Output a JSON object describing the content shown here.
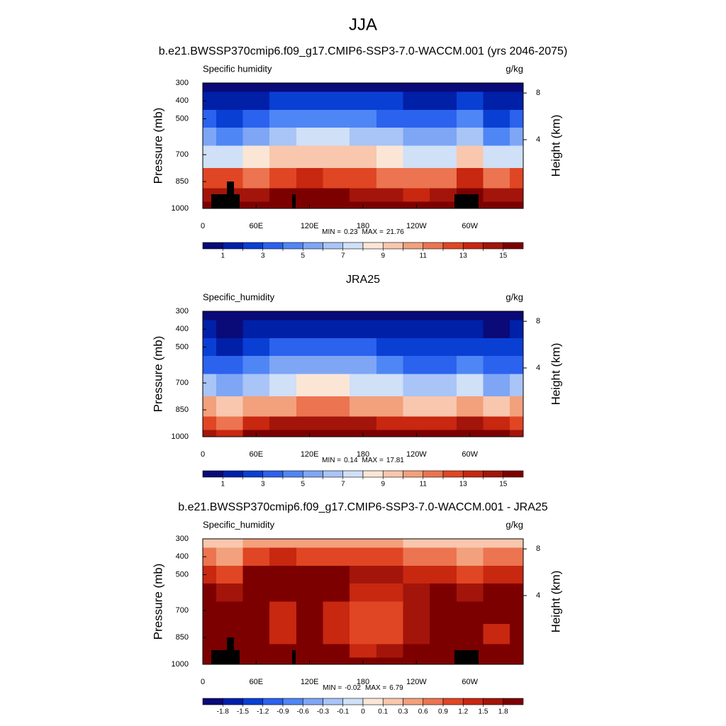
{
  "figure": {
    "title": "JJA"
  },
  "chart_data": [
    {
      "type": "contour",
      "title": "b.e21.BWSSP370cmip6.f09_g17.CMIP6-SSP3-7.0-WACCM.001 (yrs 2046-2075)",
      "left_label": "Specific humidity",
      "units_label": "g/kg",
      "ylabel": "Pressure (mb)",
      "y2label": "Height (km)",
      "x": [
        0,
        30,
        60,
        90,
        120,
        150,
        180,
        210,
        240,
        270,
        300,
        330,
        360
      ],
      "y": [
        300,
        400,
        500,
        600,
        700,
        850,
        925,
        1000
      ],
      "values": [
        [
          0.5,
          0.4,
          0.6,
          0.8,
          0.9,
          0.9,
          0.8,
          0.7,
          0.6,
          0.5,
          0.7,
          0.5,
          0.5
        ],
        [
          1.5,
          1.2,
          1.8,
          2.2,
          2.4,
          2.4,
          2.2,
          2,
          1.7,
          1.5,
          2,
          1.4,
          1.5
        ],
        [
          3,
          2.5,
          3.6,
          4.2,
          4.5,
          4.5,
          4.2,
          3.8,
          3.3,
          3,
          4,
          2.8,
          3
        ],
        [
          5,
          4,
          5.8,
          6.5,
          7,
          7,
          6.5,
          6,
          5.2,
          5,
          6.8,
          4.6,
          5
        ],
        [
          7.5,
          7,
          8,
          9,
          9.5,
          9.5,
          9,
          8.5,
          7.5,
          7.5,
          9.5,
          7,
          7.5
        ],
        [
          12,
          12,
          11,
          12,
          13,
          12.5,
          12,
          11.5,
          11,
          11.5,
          13,
          11.5,
          12
        ],
        [
          14,
          14,
          14.5,
          15,
          15.5,
          15,
          14.5,
          14,
          13.5,
          14,
          15,
          14,
          14
        ],
        [
          16,
          16,
          16.5,
          17,
          17.5,
          17,
          16.5,
          16,
          16,
          16.5,
          17,
          16.5,
          16
        ]
      ],
      "xlim": [
        0,
        360
      ],
      "xticks": [
        0,
        {
          "value": 60,
          "label": "60E"
        },
        {
          "value": 120,
          "label": "120E"
        },
        180,
        {
          "value": 240,
          "label": "120W"
        },
        {
          "value": 300,
          "label": "60W"
        }
      ],
      "ylim": [
        1000,
        300
      ],
      "yticks": [
        300,
        400,
        500,
        700,
        850,
        1000
      ],
      "y2ticks": [
        4,
        8
      ],
      "min_label": "MIN =",
      "min": 0.23,
      "max_label": "MAX =",
      "max": 21.76,
      "colorbar": {
        "levels": [
          1,
          2,
          3,
          4,
          5,
          6,
          7,
          8,
          9,
          10,
          11,
          12,
          13,
          14,
          15
        ],
        "label_stride": 2,
        "colors": [
          "#0a0a78",
          "#0020a8",
          "#0a3fd4",
          "#2b62ee",
          "#4f86f5",
          "#7ea6f5",
          "#a9c4f6",
          "#cfe0f7",
          "#fbe6d6",
          "#f8c7ad",
          "#f3a07c",
          "#ec7450",
          "#e04623",
          "#c82710",
          "#a3150a",
          "#7d0000"
        ]
      }
    },
    {
      "type": "contour",
      "title": "JRA25",
      "left_label": "Specific_humidity",
      "units_label": "g/kg",
      "ylabel": "Pressure (mb)",
      "y2label": "Height (km)",
      "x": [
        0,
        30,
        60,
        90,
        120,
        150,
        180,
        210,
        240,
        270,
        300,
        330,
        360
      ],
      "y": [
        300,
        400,
        500,
        600,
        700,
        850,
        925,
        1000
      ],
      "values": [
        [
          0.4,
          0.3,
          0.4,
          0.5,
          0.6,
          0.6,
          0.5,
          0.4,
          0.4,
          0.3,
          0.4,
          0.3,
          0.4
        ],
        [
          1,
          0.8,
          1.2,
          1.5,
          1.6,
          1.7,
          1.5,
          1.3,
          1.1,
          1,
          1.3,
          0.9,
          1
        ],
        [
          2.2,
          1.6,
          2.6,
          3,
          3.2,
          3.4,
          3,
          2.6,
          2.2,
          2,
          2.6,
          2,
          2.2
        ],
        [
          3.6,
          3,
          4.2,
          5,
          5.2,
          5.4,
          5,
          4.4,
          3.8,
          3.6,
          4.4,
          3.4,
          3.6
        ],
        [
          6,
          5,
          6.5,
          7.5,
          8,
          8,
          7.5,
          7,
          6.2,
          6,
          7,
          5.8,
          6
        ],
        [
          10,
          9,
          10,
          10.5,
          11,
          11,
          10.5,
          10,
          9.5,
          9.5,
          10.5,
          9.5,
          10
        ],
        [
          12.5,
          11,
          13.5,
          14,
          14.5,
          14.5,
          14,
          13.5,
          13,
          13,
          14,
          13,
          12.5
        ],
        [
          14,
          13,
          15.5,
          16,
          16.5,
          16.5,
          16,
          15.5,
          15,
          15,
          16,
          15,
          14
        ]
      ],
      "xlim": [
        0,
        360
      ],
      "xticks": [
        0,
        {
          "value": 60,
          "label": "60E"
        },
        {
          "value": 120,
          "label": "120E"
        },
        180,
        {
          "value": 240,
          "label": "120W"
        },
        {
          "value": 300,
          "label": "60W"
        }
      ],
      "ylim": [
        1000,
        300
      ],
      "yticks": [
        300,
        400,
        500,
        700,
        850,
        1000
      ],
      "y2ticks": [
        4,
        8
      ],
      "min_label": "MIN =",
      "min": 0.14,
      "max_label": "MAX =",
      "max": 17.81,
      "colorbar": {
        "levels": [
          1,
          2,
          3,
          4,
          5,
          6,
          7,
          8,
          9,
          10,
          11,
          12,
          13,
          14,
          15
        ],
        "label_stride": 2,
        "colors": [
          "#0a0a78",
          "#0020a8",
          "#0a3fd4",
          "#2b62ee",
          "#4f86f5",
          "#7ea6f5",
          "#a9c4f6",
          "#cfe0f7",
          "#fbe6d6",
          "#f8c7ad",
          "#f3a07c",
          "#ec7450",
          "#e04623",
          "#c82710",
          "#a3150a",
          "#7d0000"
        ]
      }
    },
    {
      "type": "contour",
      "title": "b.e21.BWSSP370cmip6.f09_g17.CMIP6-SSP3-7.0-WACCM.001 - JRA25",
      "left_label": "Specific_humidity",
      "units_label": "g/kg",
      "ylabel": "Pressure (mb)",
      "y2label": "Height (km)",
      "x": [
        0,
        30,
        60,
        90,
        120,
        150,
        180,
        210,
        240,
        270,
        300,
        330,
        360
      ],
      "y": [
        300,
        400,
        500,
        600,
        700,
        850,
        925,
        1000
      ],
      "values": [
        [
          0.2,
          0.1,
          0.3,
          0.4,
          0.3,
          0.3,
          0.3,
          0.3,
          0.2,
          0.2,
          0.1,
          0.2,
          0.2
        ],
        [
          0.7,
          0.4,
          1.0,
          1.2,
          1.0,
          1.0,
          0.9,
          0.9,
          0.7,
          0.6,
          0.3,
          0.6,
          0.7
        ],
        [
          1.4,
          0.9,
          1.9,
          2.0,
          1.9,
          1.9,
          1.6,
          1.5,
          1.3,
          1.3,
          0.9,
          1.3,
          1.4
        ],
        [
          2.0,
          1.6,
          2.5,
          2.3,
          2.5,
          2.5,
          1.3,
          1.4,
          1.6,
          1.9,
          1.7,
          1.9,
          2.0
        ],
        [
          2.5,
          2.2,
          2.4,
          1.4,
          2.6,
          1.3,
          1.0,
          1.1,
          1.5,
          2.3,
          2.4,
          2.3,
          2.5
        ],
        [
          2.6,
          2.5,
          2.2,
          1.3,
          2.7,
          1.2,
          1.1,
          1.0,
          1.6,
          2.5,
          2.4,
          1.3,
          2.6
        ],
        [
          3.0,
          2.6,
          2.6,
          2.4,
          2.0,
          1.8,
          1.4,
          1.5,
          2.4,
          3.0,
          2.6,
          2.8,
          3.0
        ],
        [
          3.2,
          2.8,
          3.0,
          2.8,
          2.6,
          2.4,
          2.2,
          2.2,
          2.6,
          3.2,
          3.0,
          3.0,
          3.2
        ]
      ],
      "xlim": [
        0,
        360
      ],
      "xticks": [
        0,
        {
          "value": 60,
          "label": "60E"
        },
        {
          "value": 120,
          "label": "120E"
        },
        180,
        {
          "value": 240,
          "label": "120W"
        },
        {
          "value": 300,
          "label": "60W"
        }
      ],
      "ylim": [
        1000,
        300
      ],
      "yticks": [
        300,
        400,
        500,
        700,
        850,
        1000
      ],
      "y2ticks": [
        4,
        8
      ],
      "min_label": "MIN =",
      "min": -0.02,
      "max_label": "MAX =",
      "max": 6.79,
      "colorbar": {
        "levels": [
          -1.8,
          -1.5,
          -1.2,
          -0.9,
          -0.6,
          -0.3,
          -0.1,
          0,
          0.1,
          0.3,
          0.6,
          0.9,
          1.2,
          1.5,
          1.8
        ],
        "label_stride": 1,
        "colors": [
          "#0a0a78",
          "#0020a8",
          "#0a3fd4",
          "#2b62ee",
          "#4f86f5",
          "#7ea6f5",
          "#a9c4f6",
          "#cfe0f7",
          "#fbe6d6",
          "#f8c7ad",
          "#f3a07c",
          "#ec7450",
          "#e04623",
          "#c82710",
          "#a3150a",
          "#7d0000"
        ]
      }
    }
  ]
}
